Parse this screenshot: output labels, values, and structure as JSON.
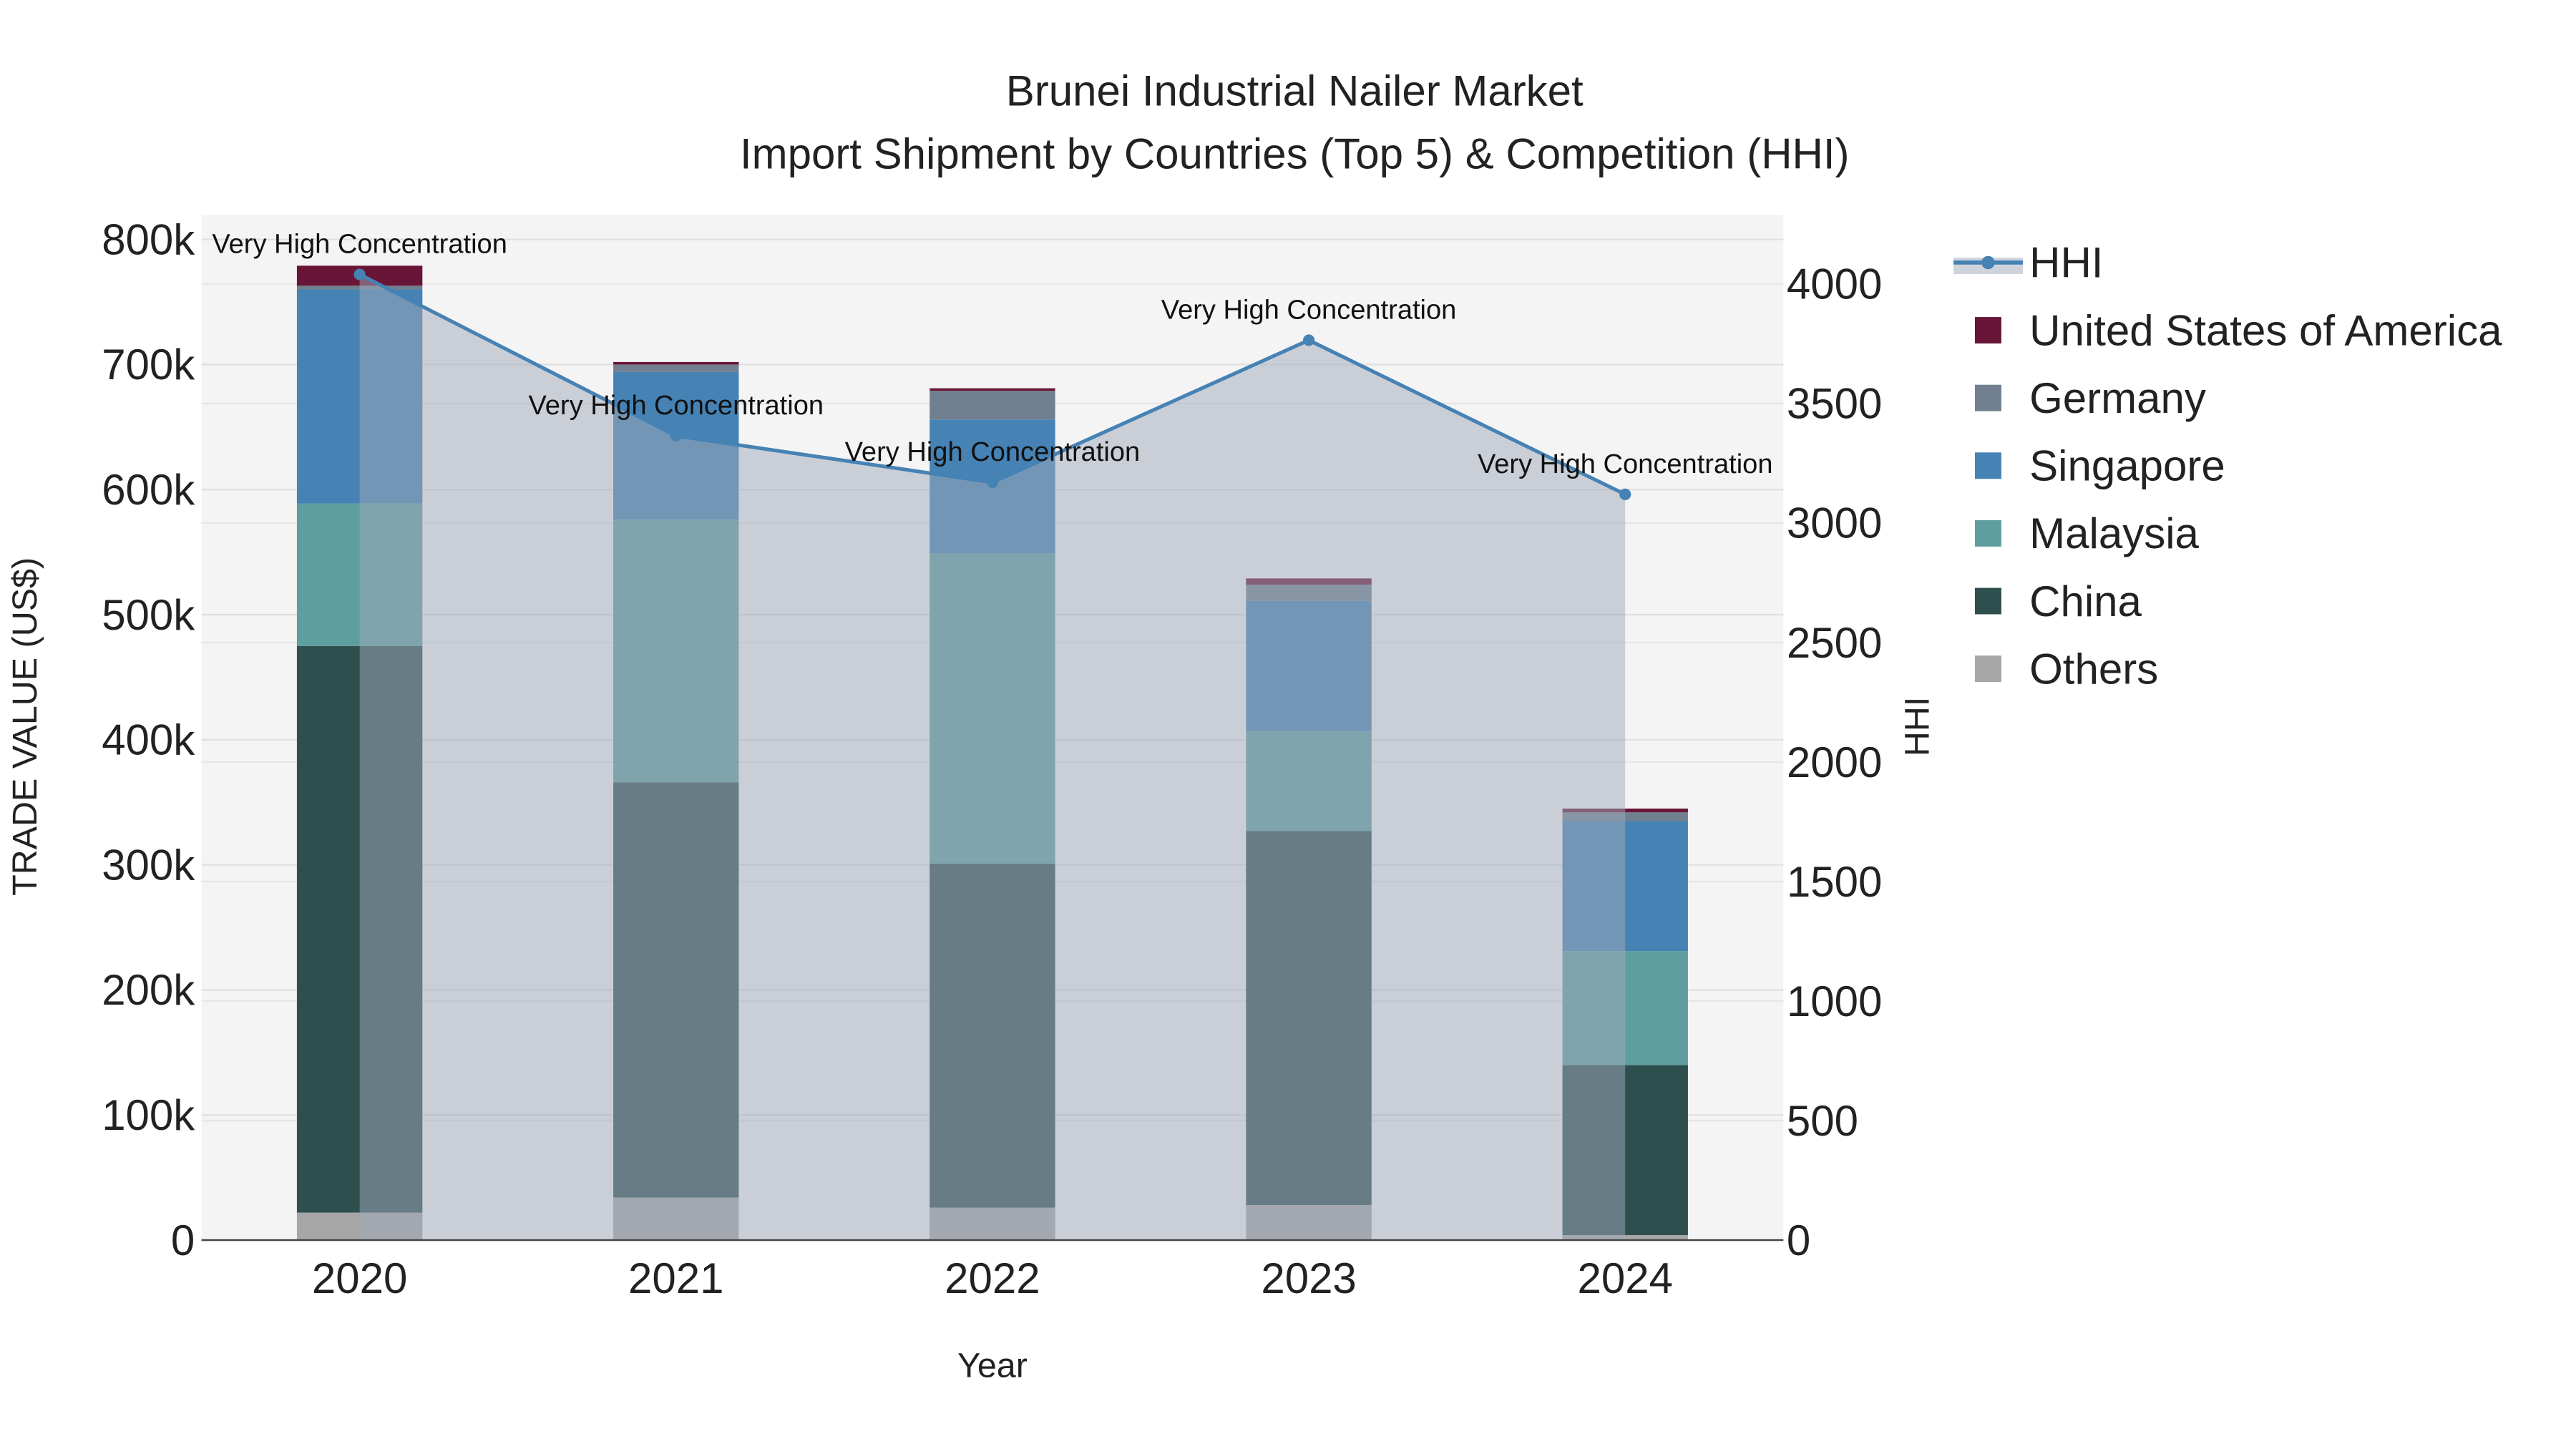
{
  "chart_data": {
    "type": "bar",
    "title": "Brunei Industrial Nailer Market",
    "subtitle": "Import Shipment by Countries (Top 5) & Competition (HHI)",
    "xlabel": "Year",
    "ylabel": "TRADE VALUE (US$)",
    "y2label": "HHI",
    "categories": [
      "2020",
      "2021",
      "2022",
      "2023",
      "2024"
    ],
    "ylim": [
      0,
      800000
    ],
    "y_ticks": [
      0,
      100000,
      200000,
      300000,
      400000,
      500000,
      600000,
      700000,
      800000
    ],
    "y_tick_labels": [
      "0",
      "100k",
      "200k",
      "300k",
      "400k",
      "500k",
      "600k",
      "700k",
      "800k"
    ],
    "y2lim": [
      0,
      4000
    ],
    "y2_ticks": [
      0,
      500,
      1000,
      1500,
      2000,
      2500,
      3000,
      3500,
      4000
    ],
    "y2_tick_labels": [
      "0",
      "500",
      "1000",
      "1500",
      "2000",
      "2500",
      "3000",
      "3500",
      "4000"
    ],
    "grid": true,
    "legend_position": "right",
    "series": [
      {
        "name": "Others",
        "color": "#a6a6a6",
        "values": [
          22000,
          34000,
          26000,
          28000,
          4000
        ]
      },
      {
        "name": "China",
        "color": "#2f4f4f",
        "values": [
          453000,
          332000,
          275000,
          299000,
          136000
        ]
      },
      {
        "name": "Malaysia",
        "color": "#5f9ea0",
        "values": [
          114000,
          210000,
          248000,
          80000,
          91000
        ]
      },
      {
        "name": "Singapore",
        "color": "#4682b4",
        "values": [
          171000,
          118000,
          107000,
          104000,
          104000
        ]
      },
      {
        "name": "Germany",
        "color": "#708090",
        "values": [
          3000,
          6000,
          23000,
          13000,
          7000
        ]
      },
      {
        "name": "United States of America",
        "color": "#691537",
        "values": [
          16000,
          2000,
          2000,
          5000,
          3000
        ]
      }
    ],
    "hhi": {
      "name": "HHI",
      "color": "#4682b4",
      "values": [
        4040,
        3365,
        3170,
        3765,
        3120
      ],
      "annotations": [
        "Very High Concentration",
        "Very High Concentration",
        "Very High Concentration",
        "Very High Concentration",
        "Very High Concentration"
      ]
    },
    "legend_order": [
      "HHI",
      "United States of America",
      "Germany",
      "Singapore",
      "Malaysia",
      "China",
      "Others"
    ]
  }
}
